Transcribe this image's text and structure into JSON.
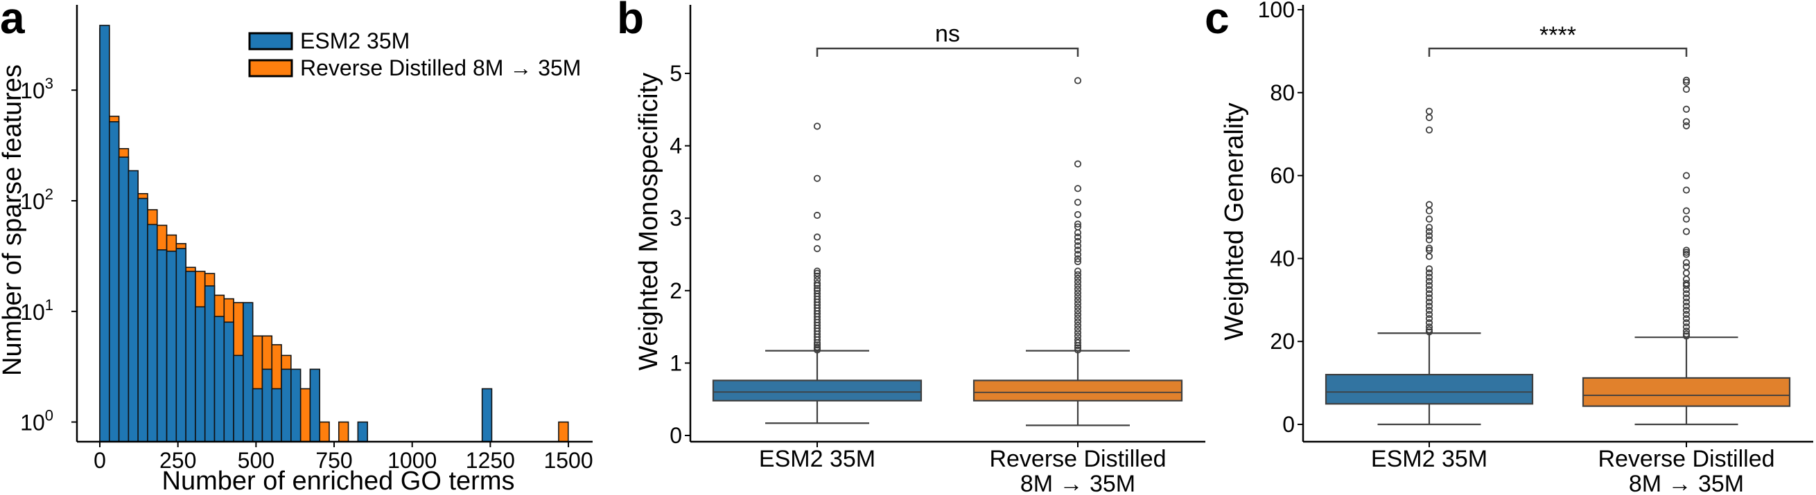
{
  "chart_data": [
    {
      "panel": "a",
      "type": "bar",
      "subtype": "overlaid histogram",
      "xlabel": "Number of enriched GO terms",
      "ylabel": "Number of sparse features",
      "yscale": "log",
      "xlim": [
        -75,
        1565
      ],
      "ylim_log10": [
        -0.18,
        3.76
      ],
      "xticks": [
        0,
        250,
        500,
        750,
        1000,
        1250,
        1500
      ],
      "yticks": [
        {
          "base": "10",
          "exp": "0"
        },
        {
          "base": "10",
          "exp": "1"
        },
        {
          "base": "10",
          "exp": "2"
        },
        {
          "base": "10",
          "exp": "3"
        }
      ],
      "bin_start": 0,
      "bin_width": 30.6,
      "legend_position": "top-right",
      "series": [
        {
          "name": "Reverse Distilled 8M → 35M",
          "color": "#ff7f0e",
          "values": [
            3600,
            580,
            296,
            170,
            116,
            83,
            60,
            49,
            41,
            25,
            23,
            22,
            14,
            13,
            12,
            10,
            6,
            6,
            5,
            4,
            2,
            2,
            0,
            1,
            0,
            1,
            0,
            0,
            0,
            0,
            0,
            0,
            0,
            0,
            0,
            0,
            0,
            0,
            0,
            0,
            0,
            0,
            0,
            0,
            0,
            0,
            0,
            0,
            1
          ]
        },
        {
          "name": "ESM2 35M",
          "color": "#1f77b4",
          "values": [
            3850,
            518,
            248,
            187,
            105,
            61,
            36,
            35,
            37,
            23,
            11,
            17,
            9,
            8,
            4,
            12,
            2,
            3,
            2,
            3,
            3,
            0,
            3,
            0,
            0,
            0,
            0,
            1,
            0,
            0,
            0,
            0,
            0,
            0,
            0,
            0,
            0,
            0,
            0,
            0,
            2,
            0,
            0,
            0,
            0,
            0,
            0,
            0,
            0
          ]
        }
      ]
    },
    {
      "panel": "b",
      "type": "box",
      "ylabel": "Weighted Monospecificity",
      "ylim": [
        -0.1,
        5.95
      ],
      "yticks": [
        0,
        1,
        2,
        3,
        4,
        5
      ],
      "significance": "ns",
      "categories": [
        {
          "label_line1": "ESM2 35M",
          "label_line2": "",
          "color": "#3274a1",
          "whisker_low": 0.17,
          "q1": 0.48,
          "median": 0.6,
          "q3": 0.76,
          "whisker_high": 1.17,
          "outliers": [
            4.27,
            3.55,
            3.04,
            2.74,
            2.58,
            2.27,
            2.24,
            2.2,
            2.15,
            2.1,
            2.07,
            2.03,
            2.0,
            1.96,
            1.92,
            1.88,
            1.84,
            1.8,
            1.76,
            1.72,
            1.68,
            1.64,
            1.6,
            1.56,
            1.52,
            1.48,
            1.44,
            1.4,
            1.36,
            1.32,
            1.28,
            1.25,
            1.22,
            1.2,
            1.18
          ]
        },
        {
          "label_line1": "Reverse Distilled",
          "label_line2": "8M → 35M",
          "color": "#e1812c",
          "whisker_low": 0.14,
          "q1": 0.48,
          "median": 0.595,
          "q3": 0.76,
          "whisker_high": 1.17,
          "outliers": [
            4.9,
            3.75,
            3.41,
            3.22,
            3.05,
            2.92,
            2.88,
            2.8,
            2.74,
            2.68,
            2.62,
            2.56,
            2.5,
            2.44,
            2.4,
            2.27,
            2.22,
            2.17,
            2.12,
            2.07,
            2.02,
            1.97,
            1.92,
            1.87,
            1.82,
            1.77,
            1.72,
            1.67,
            1.62,
            1.57,
            1.52,
            1.47,
            1.42,
            1.37,
            1.32,
            1.28,
            1.24,
            1.21,
            1.18
          ]
        }
      ]
    },
    {
      "panel": "c",
      "type": "box",
      "ylabel": "Weighted Generality",
      "ylim": [
        -4,
        102
      ],
      "yticks": [
        0,
        20,
        40,
        60,
        80,
        100
      ],
      "significance": "****",
      "categories": [
        {
          "label_line1": "ESM2 35M",
          "label_line2": "",
          "color": "#3274a1",
          "whisker_low": 0,
          "q1": 4.95,
          "median": 7.8,
          "q3": 12.0,
          "whisker_high": 22.0,
          "outliers": [
            75.5,
            74,
            71,
            53,
            51.5,
            49.5,
            47.5,
            46.5,
            45.5,
            44.5,
            42.5,
            42,
            40.5,
            37.5,
            36.5,
            35.5,
            34.5,
            33.5,
            32.5,
            31.5,
            30.5,
            29.5,
            28.5,
            27.5,
            26.5,
            25.5,
            24.5,
            23.5,
            22.8,
            22.3
          ]
        },
        {
          "label_line1": "Reverse Distilled",
          "label_line2": "8M → 35M",
          "color": "#e1812c",
          "whisker_low": 0,
          "q1": 4.4,
          "median": 7.0,
          "q3": 11.2,
          "whisker_high": 21.0,
          "outliers": [
            83,
            82.5,
            80.8,
            76,
            73,
            72,
            60,
            56.5,
            51.5,
            49.5,
            46.5,
            42,
            41.5,
            41,
            39,
            38,
            36.5,
            35,
            34,
            33.5,
            32.5,
            31.5,
            30.5,
            29.5,
            28.5,
            27.5,
            26.5,
            25.5,
            24.5,
            23.5,
            22.5,
            21.8,
            21.3
          ]
        }
      ]
    }
  ],
  "panel_letters": [
    "a",
    "b",
    "c"
  ]
}
